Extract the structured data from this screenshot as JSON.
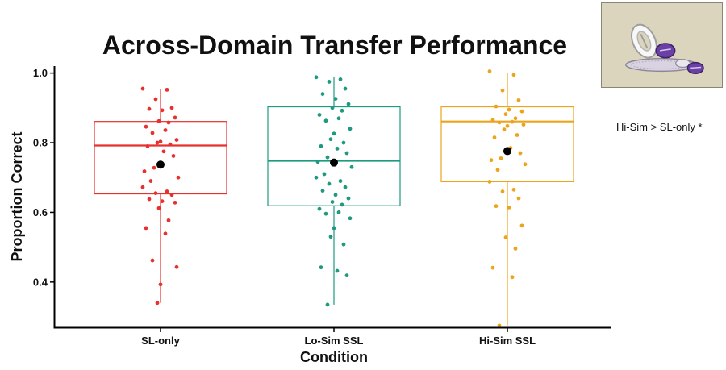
{
  "annotation": "Hi-Sim > SL-only *",
  "chart_data": {
    "type": "box",
    "title": "Across-Domain Transfer Performance",
    "xlabel": "Condition",
    "ylabel": "Proportion Correct",
    "categories": [
      "SL-only",
      "Lo-Sim SSL",
      "Hi-Sim SSL"
    ],
    "ylim": [
      0.27,
      1.02
    ],
    "yticks": [
      0.4,
      0.6,
      0.8,
      1.0
    ],
    "ytick_labels": [
      "0.4",
      "0.6",
      "0.8",
      "1.0"
    ],
    "grid": false,
    "colors": [
      "#e8312e",
      "#1e9a80",
      "#eba41c"
    ],
    "mean_color": "#000000",
    "series": [
      {
        "box": {
          "whisker_low": 0.34,
          "q1": 0.653,
          "median": 0.792,
          "q3": 0.861,
          "whisker_high": 0.955
        },
        "mean": 0.737,
        "points": [
          0.955,
          0.952,
          0.925,
          0.9,
          0.897,
          0.893,
          0.872,
          0.862,
          0.858,
          0.846,
          0.836,
          0.828,
          0.808,
          0.803,
          0.8,
          0.795,
          0.79,
          0.775,
          0.762,
          0.728,
          0.718,
          0.7,
          0.69,
          0.672,
          0.66,
          0.655,
          0.65,
          0.638,
          0.632,
          0.628,
          0.612,
          0.577,
          0.555,
          0.539,
          0.462,
          0.443,
          0.393,
          0.34
        ]
      },
      {
        "box": {
          "whisker_low": 0.335,
          "q1": 0.619,
          "median": 0.748,
          "q3": 0.903,
          "whisker_high": 0.988
        },
        "mean": 0.743,
        "points": [
          0.988,
          0.982,
          0.975,
          0.955,
          0.94,
          0.926,
          0.911,
          0.9,
          0.892,
          0.88,
          0.87,
          0.863,
          0.84,
          0.826,
          0.81,
          0.8,
          0.79,
          0.783,
          0.77,
          0.758,
          0.745,
          0.73,
          0.71,
          0.7,
          0.69,
          0.682,
          0.672,
          0.662,
          0.65,
          0.64,
          0.63,
          0.622,
          0.61,
          0.6,
          0.596,
          0.583,
          0.555,
          0.53,
          0.508,
          0.442,
          0.432,
          0.419,
          0.335
        ]
      },
      {
        "box": {
          "whisker_low": 0.275,
          "q1": 0.688,
          "median": 0.861,
          "q3": 0.903,
          "whisker_high": 1.0
        },
        "mean": 0.776,
        "points": [
          1.005,
          0.995,
          0.95,
          0.922,
          0.904,
          0.895,
          0.89,
          0.882,
          0.87,
          0.865,
          0.86,
          0.858,
          0.852,
          0.848,
          0.838,
          0.822,
          0.815,
          0.785,
          0.77,
          0.755,
          0.75,
          0.738,
          0.722,
          0.688,
          0.665,
          0.66,
          0.64,
          0.618,
          0.614,
          0.562,
          0.528,
          0.496,
          0.441,
          0.414,
          0.275
        ]
      }
    ]
  }
}
